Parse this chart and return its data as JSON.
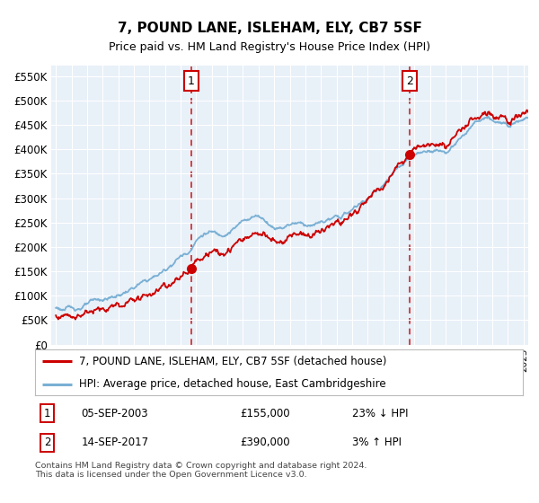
{
  "title": "7, POUND LANE, ISLEHAM, ELY, CB7 5SF",
  "subtitle": "Price paid vs. HM Land Registry's House Price Index (HPI)",
  "ylabel_ticks": [
    "£0",
    "£50K",
    "£100K",
    "£150K",
    "£200K",
    "£250K",
    "£300K",
    "£350K",
    "£400K",
    "£450K",
    "£500K",
    "£550K"
  ],
  "ytick_values": [
    0,
    50000,
    100000,
    150000,
    200000,
    250000,
    300000,
    350000,
    400000,
    450000,
    500000,
    550000
  ],
  "ylim": [
    0,
    572000
  ],
  "xlim_start": 1994.7,
  "xlim_end": 2025.3,
  "bg_color": "#e8f0f8",
  "grid_color": "#ffffff",
  "sale1_x": 2003.68,
  "sale1_y": 155000,
  "sale1_label": "1",
  "sale2_x": 2017.7,
  "sale2_y": 390000,
  "sale2_label": "2",
  "legend_line1": "7, POUND LANE, ISLEHAM, ELY, CB7 5SF (detached house)",
  "legend_line2": "HPI: Average price, detached house, East Cambridgeshire",
  "table_row1_num": "1",
  "table_row1_date": "05-SEP-2003",
  "table_row1_price": "£155,000",
  "table_row1_hpi": "23% ↓ HPI",
  "table_row2_num": "2",
  "table_row2_date": "14-SEP-2017",
  "table_row2_price": "£390,000",
  "table_row2_hpi": "3% ↑ HPI",
  "footer": "Contains HM Land Registry data © Crown copyright and database right 2024.\nThis data is licensed under the Open Government Licence v3.0.",
  "line_red_color": "#cc0000",
  "line_blue_color": "#7ab0d4",
  "annotation_box_color": "#cc0000",
  "sale1_hpi_ratio": 0.775,
  "sale2_hpi_ratio": 1.03
}
